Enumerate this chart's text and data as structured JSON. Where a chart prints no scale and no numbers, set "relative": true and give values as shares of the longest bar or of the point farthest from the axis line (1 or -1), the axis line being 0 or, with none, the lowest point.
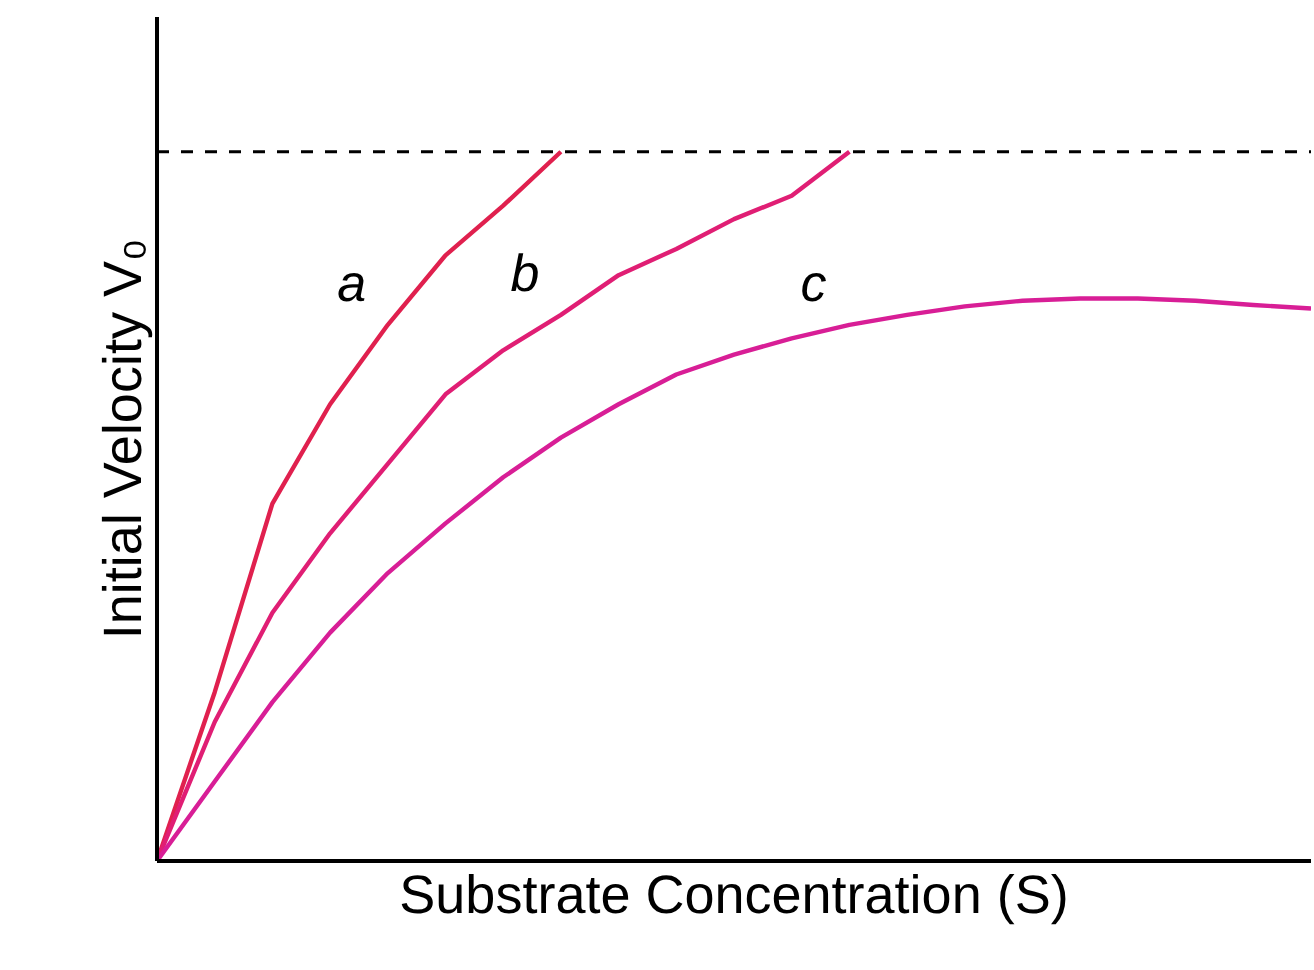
{
  "chart_data": {
    "type": "line",
    "relative": true,
    "xlabel": "Substrate Concentration (S)",
    "ylabel": "Initial Velocity V₀",
    "marker": "none",
    "line_style": "solid",
    "categories": [
      null,
      null,
      null,
      null,
      null,
      null,
      null,
      null,
      null,
      null,
      null,
      null,
      null,
      null,
      null,
      null,
      null,
      null,
      null,
      null,
      null
    ],
    "series": [
      {
        "name": "a",
        "color": "#e0204e",
        "values": [
          0,
          0.238,
          0.504,
          0.644,
          0.756,
          0.854,
          0.924,
          1,
          null,
          null,
          null,
          null,
          null,
          null,
          null,
          null,
          null,
          null,
          null,
          null,
          null
        ]
      },
      {
        "name": "b",
        "color": "#e01e74",
        "values": [
          0,
          0.196,
          0.35,
          0.462,
          0.56,
          0.658,
          0.72,
          0.77,
          0.826,
          0.863,
          0.905,
          0.938,
          1,
          null,
          null,
          null,
          null,
          null,
          null,
          null,
          null
        ]
      },
      {
        "name": "c",
        "color": "#d81e96",
        "values": [
          0,
          0.112,
          0.224,
          0.322,
          0.406,
          0.476,
          0.541,
          0.597,
          0.644,
          0.686,
          0.714,
          0.737,
          0.756,
          0.77,
          0.782,
          0.79,
          0.793,
          0.793,
          0.79,
          0.784,
          0.779
        ]
      }
    ],
    "ref_lines": [
      {
        "axis": "y",
        "value": 1,
        "line_style": "dashed",
        "color": "#000000"
      }
    ]
  }
}
